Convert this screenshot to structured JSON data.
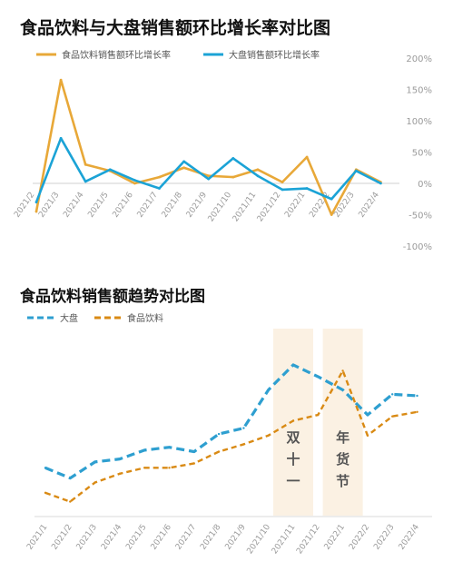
{
  "chart_data": [
    {
      "type": "line",
      "title": "食品饮料与大盘销售额环比增长率对比图",
      "categories": [
        "2021/2",
        "2021/3",
        "2021/4",
        "2021/5",
        "2021/6",
        "2021/7",
        "2021/8",
        "2021/9",
        "2021/10",
        "2021/11",
        "2021/12",
        "2022/1",
        "2022/2",
        "2022/3",
        "2022/4"
      ],
      "series": [
        {
          "name": "食品饮料销售额环比增长率",
          "color": "#E8A838",
          "values": [
            -45,
            165,
            30,
            20,
            0,
            10,
            25,
            12,
            10,
            22,
            2,
            42,
            -50,
            22,
            2
          ]
        },
        {
          "name": "大盘销售额环比增长率",
          "color": "#1BA3D6",
          "values": [
            -30,
            72,
            3,
            22,
            5,
            -8,
            35,
            7,
            40,
            12,
            -10,
            -8,
            -25,
            20,
            0
          ]
        }
      ],
      "y_ticks": [
        "200%",
        "150%",
        "100%",
        "50%",
        "0%",
        "-50%",
        "-100%"
      ],
      "ylim": [
        -100,
        200
      ],
      "legend_position": "top-left"
    },
    {
      "type": "line",
      "title": "食品饮料销售额趋势对比图",
      "categories": [
        "2021/1",
        "2021/2",
        "2021/3",
        "2021/4",
        "2021/5",
        "2021/6",
        "2021/7",
        "2021/8",
        "2021/9",
        "2021/10",
        "2021/11",
        "2021/12",
        "2022/1",
        "2022/2",
        "2022/3",
        "2022/4"
      ],
      "series": [
        {
          "name": "大盘",
          "color": "#2E9FD0",
          "style": "dashed",
          "values": [
            43,
            36,
            47,
            49,
            55,
            57,
            54,
            66,
            70,
            96,
            113,
            105,
            96,
            79,
            93,
            92
          ]
        },
        {
          "name": "食品饮料",
          "color": "#D98A14",
          "style": "dashed",
          "values": [
            26,
            20,
            33,
            39,
            43,
            43,
            46,
            54,
            59,
            65,
            75,
            79,
            109,
            65,
            78,
            81
          ]
        }
      ],
      "y_axis_visible": false,
      "highlights": [
        {
          "label": "双十一",
          "span": [
            "2021/11",
            "2021/11"
          ]
        },
        {
          "label": "年货节",
          "span": [
            "2022/1",
            "2022/1"
          ]
        }
      ],
      "legend_position": "top-left"
    }
  ]
}
